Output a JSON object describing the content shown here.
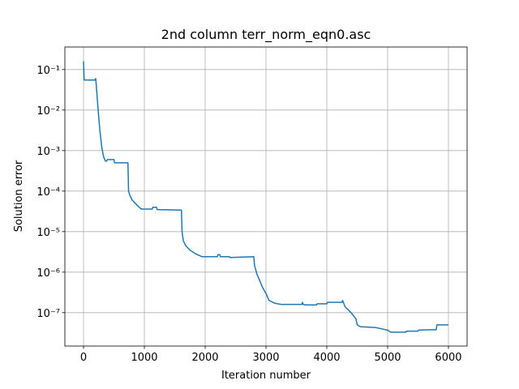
{
  "chart_data": {
    "type": "line",
    "title": "2nd column terr_norm_eqn0.asc",
    "xlabel": "Iteration number",
    "ylabel": "Solution error",
    "yscale": "log",
    "grid": true,
    "xlim": [
      -307,
      6307
    ],
    "ylim": [
      1.5e-08,
      0.36
    ],
    "xticks": [
      0,
      1000,
      2000,
      3000,
      4000,
      5000,
      6000
    ],
    "yticks": [
      {
        "value": 1e-07,
        "label": "10⁻⁷"
      },
      {
        "value": 1e-06,
        "label": "10⁻⁶"
      },
      {
        "value": 1e-05,
        "label": "10⁻⁵"
      },
      {
        "value": 0.0001,
        "label": "10⁻⁴"
      },
      {
        "value": 0.001,
        "label": "10⁻³"
      },
      {
        "value": 0.01,
        "label": "10⁻²"
      },
      {
        "value": 0.1,
        "label": "10⁻¹"
      }
    ],
    "x": [
      0,
      10,
      190,
      200,
      210,
      240,
      270,
      300,
      330,
      360,
      380,
      390,
      500,
      510,
      730,
      740,
      760,
      800,
      850,
      900,
      950,
      1130,
      1140,
      1200,
      1210,
      1610,
      1620,
      1640,
      1680,
      1750,
      1850,
      1950,
      2200,
      2210,
      2240,
      2250,
      2400,
      2410,
      2800,
      2810,
      2850,
      2900,
      2950,
      3000,
      3050,
      3150,
      3250,
      3590,
      3600,
      3610,
      3650,
      3830,
      3840,
      4000,
      4010,
      4250,
      4260,
      4300,
      4400,
      4480,
      4500,
      4550,
      4800,
      4900,
      5000,
      5050,
      5300,
      5310,
      5500,
      5510,
      5700,
      5800,
      5810,
      6000
    ],
    "series": [
      {
        "color": "#1f77b4",
        "values": [
          0.16,
          0.055,
          0.055,
          0.06,
          0.04,
          0.01,
          0.003,
          0.0012,
          0.0007,
          0.00055,
          0.00055,
          0.0006,
          0.0006,
          0.0005,
          0.0005,
          0.0001,
          8e-05,
          6e-05,
          5e-05,
          4.2e-05,
          3.6e-05,
          3.6e-05,
          4e-05,
          4e-05,
          3.5e-05,
          3.4e-05,
          1e-05,
          6e-06,
          4.5e-06,
          3.5e-06,
          2.8e-06,
          2.4e-06,
          2.4e-06,
          2.7e-06,
          2.7e-06,
          2.4e-06,
          2.4e-06,
          2.3e-06,
          2.4e-06,
          1.5e-06,
          9e-07,
          6e-07,
          4e-07,
          3e-07,
          2e-07,
          1.7e-07,
          1.6e-07,
          1.6e-07,
          1.8e-07,
          1.6e-07,
          1.55e-07,
          1.55e-07,
          1.65e-07,
          1.65e-07,
          1.8e-07,
          1.8e-07,
          2e-07,
          1.4e-07,
          1e-07,
          7e-08,
          5e-08,
          4.5e-08,
          4.3e-08,
          4e-08,
          3.7e-08,
          3.3e-08,
          3.3e-08,
          3.5e-08,
          3.5e-08,
          3.7e-08,
          3.8e-08,
          3.8e-08,
          5e-08,
          5e-08
        ]
      }
    ]
  }
}
